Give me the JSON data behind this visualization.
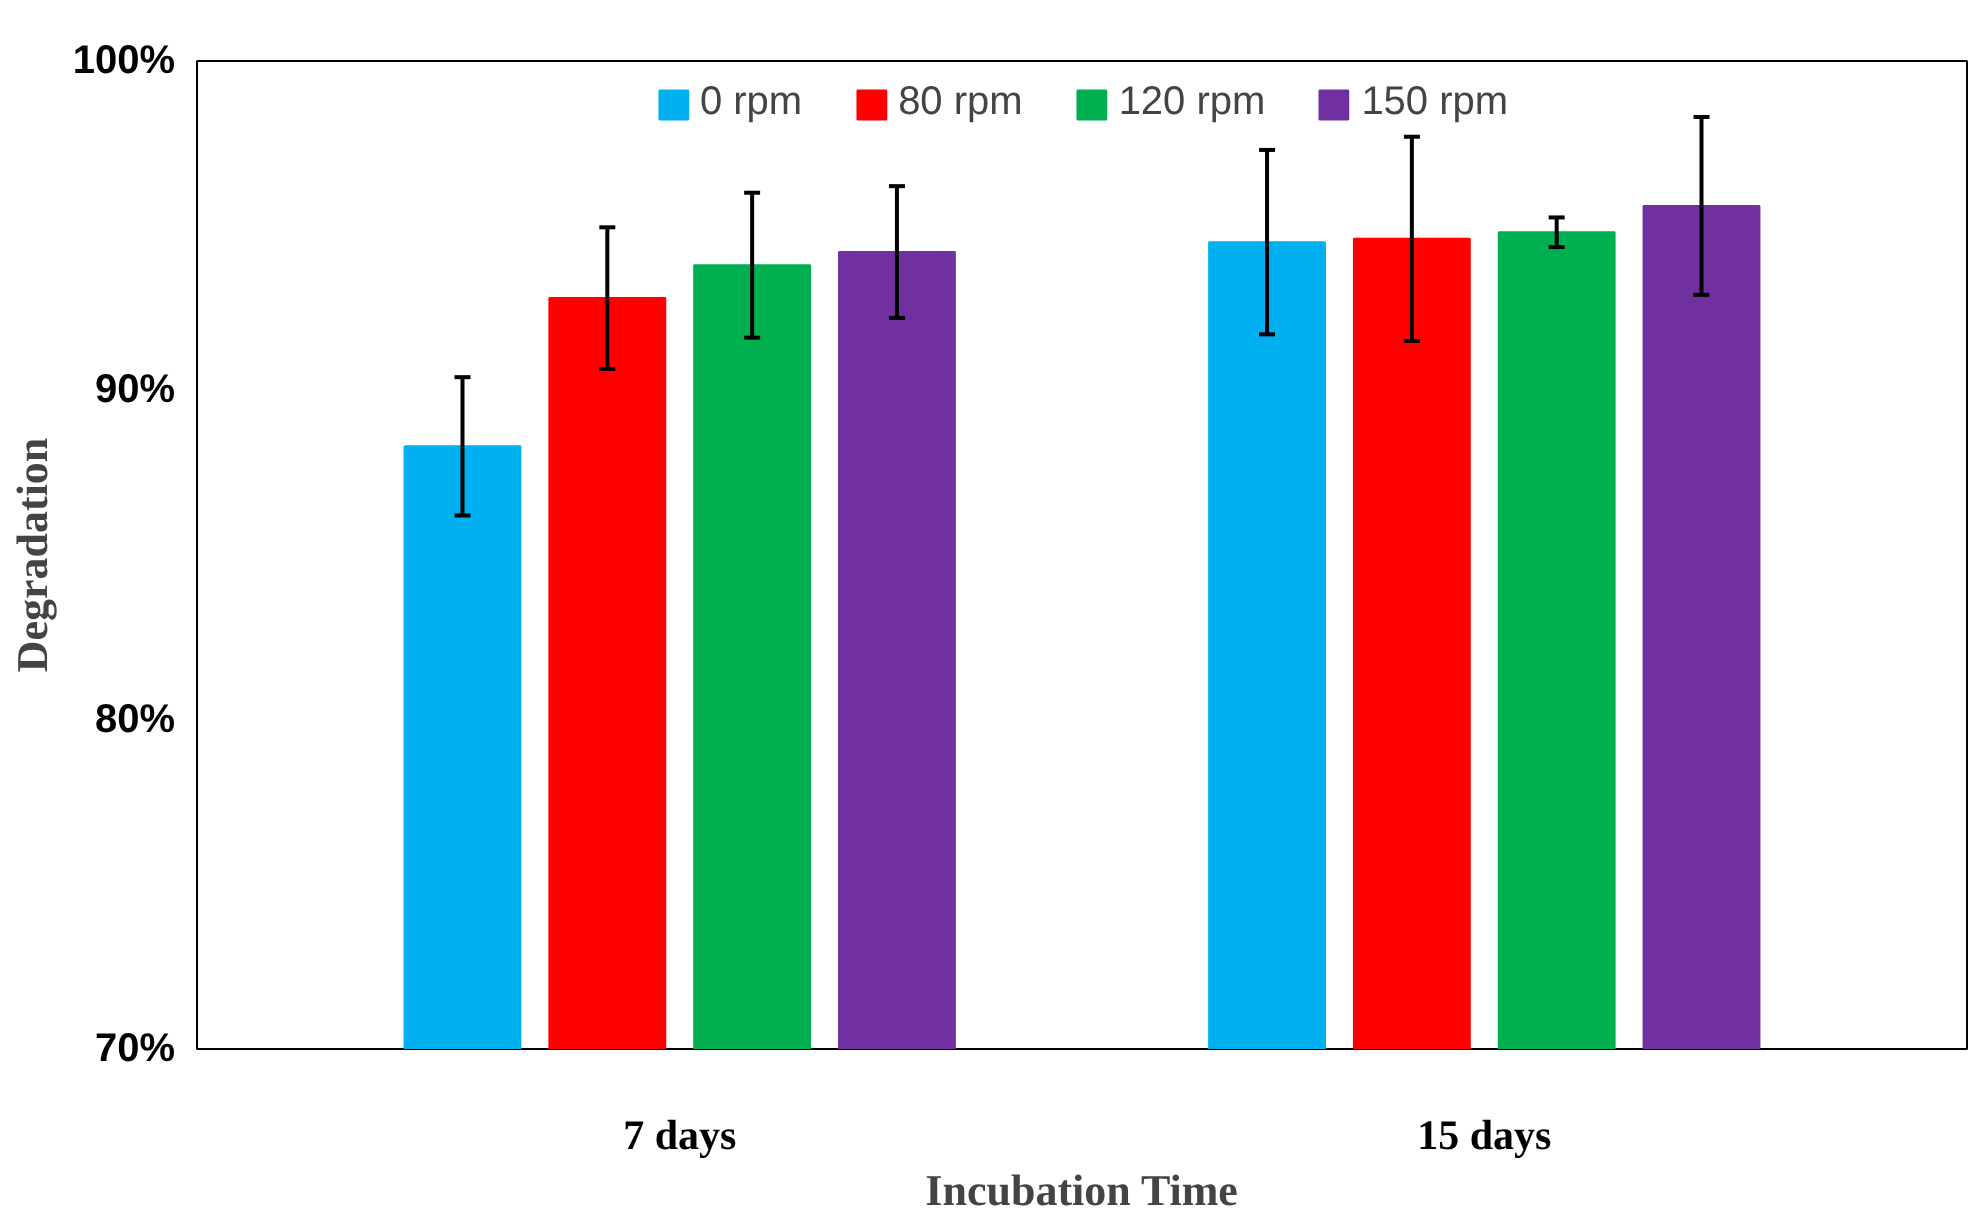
{
  "chart_data": {
    "type": "bar",
    "xlabel": "Incubation Time",
    "ylabel": "Degradation",
    "categories": [
      "7 days",
      "15 days"
    ],
    "series": [
      {
        "name": "0 rpm",
        "color": "#00b0f0",
        "values": [
          88.3,
          94.5
        ],
        "errors": [
          2.1,
          2.8
        ]
      },
      {
        "name": "80 rpm",
        "color": "#ff0000",
        "values": [
          92.8,
          94.6
        ],
        "errors": [
          2.15,
          3.1
        ]
      },
      {
        "name": "120 rpm",
        "color": "#00b050",
        "values": [
          93.8,
          94.8
        ],
        "errors": [
          2.2,
          0.45
        ]
      },
      {
        "name": "150 rpm",
        "color": "#7030a0",
        "values": [
          94.2,
          95.6
        ],
        "errors": [
          2.0,
          2.7
        ]
      }
    ],
    "ylim": [
      70,
      100
    ],
    "yticks": [
      {
        "value": 70,
        "label": "70%"
      },
      {
        "value": 80,
        "label": "80%"
      },
      {
        "value": 90,
        "label": "90%"
      },
      {
        "value": 100,
        "label": "100%"
      }
    ],
    "grid": false,
    "legend": "top"
  }
}
